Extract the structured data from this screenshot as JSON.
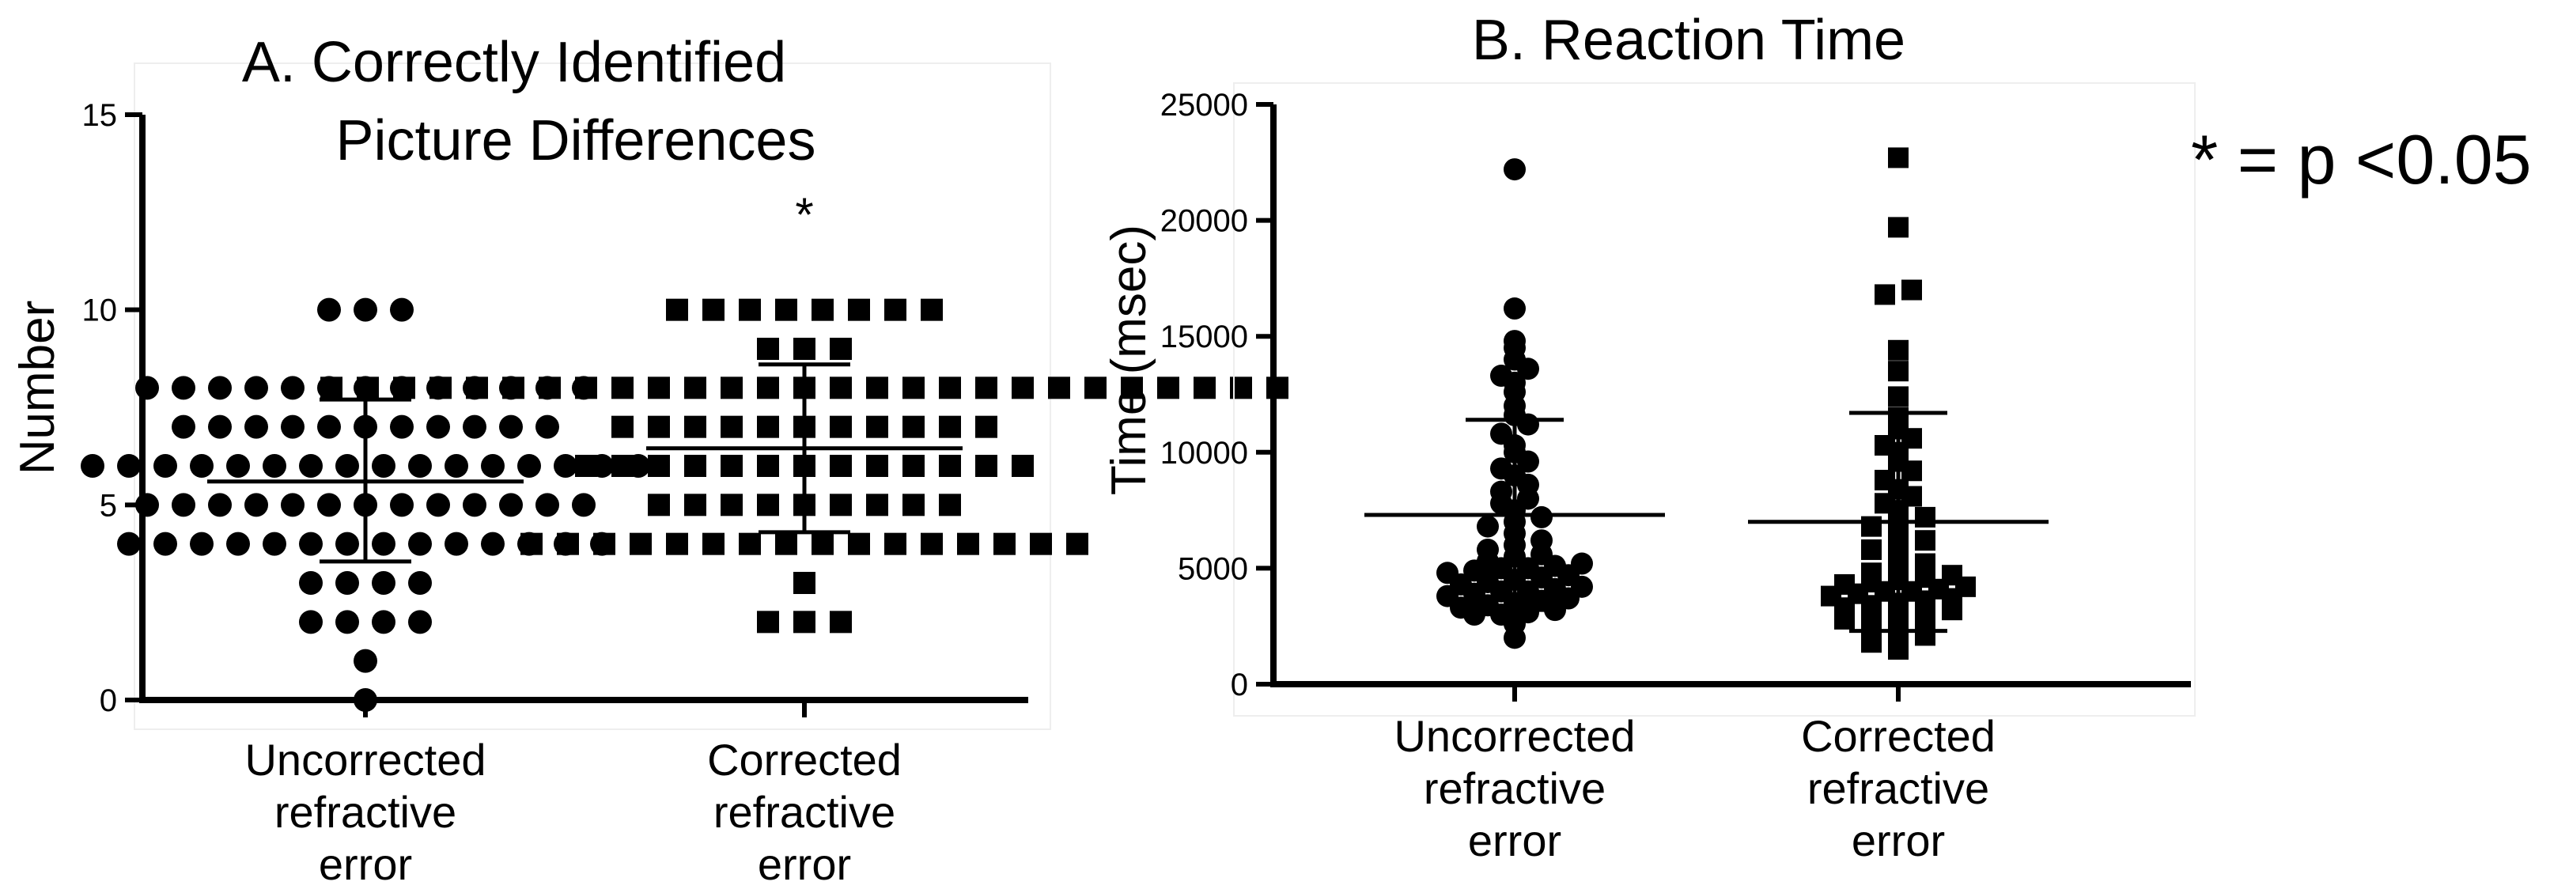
{
  "note": "* = p <0.05",
  "chart_data": [
    {
      "type": "scatter",
      "title_lines": [
        "A. Correctly Identified",
        "Picture Differences"
      ],
      "ylabel": "Number",
      "ylim": [
        0,
        15
      ],
      "yticks": [
        0,
        5,
        10,
        15
      ],
      "grid": false,
      "categories": [
        {
          "lines": [
            "Uncorrected",
            "refractive",
            "error"
          ]
        },
        {
          "lines": [
            "Corrected",
            "refractive",
            "error"
          ]
        }
      ],
      "series": [
        {
          "marker": "circle",
          "values": [
            0,
            1,
            2,
            2,
            2,
            2,
            3,
            3,
            3,
            3,
            4,
            4,
            4,
            4,
            4,
            4,
            4,
            4,
            4,
            4,
            4,
            4,
            4,
            4,
            5,
            5,
            5,
            5,
            5,
            5,
            5,
            5,
            5,
            5,
            5,
            5,
            5,
            6,
            6,
            6,
            6,
            6,
            6,
            6,
            6,
            6,
            6,
            6,
            6,
            6,
            6,
            6,
            6,
            7,
            7,
            7,
            7,
            7,
            7,
            7,
            7,
            7,
            7,
            7,
            8,
            8,
            8,
            8,
            8,
            8,
            8,
            8,
            8,
            8,
            8,
            8,
            8,
            10,
            10,
            10
          ],
          "mean": 5.6,
          "sd_low": 3.55,
          "sd_high": 7.7
        },
        {
          "marker": "square",
          "values": [
            2,
            2,
            2,
            3,
            4,
            4,
            4,
            4,
            4,
            4,
            4,
            4,
            4,
            4,
            4,
            4,
            4,
            4,
            4,
            4,
            5,
            5,
            5,
            5,
            5,
            5,
            5,
            5,
            5,
            6,
            6,
            6,
            6,
            6,
            6,
            6,
            6,
            6,
            6,
            6,
            6,
            6,
            7,
            7,
            7,
            7,
            7,
            7,
            7,
            7,
            7,
            7,
            7,
            8,
            8,
            8,
            8,
            8,
            8,
            8,
            8,
            8,
            8,
            8,
            8,
            8,
            8,
            8,
            8,
            8,
            8,
            8,
            8,
            8,
            8,
            8,
            8,
            8,
            8,
            8,
            9,
            9,
            9,
            10,
            10,
            10,
            10,
            10,
            10,
            10,
            10
          ],
          "mean": 6.45,
          "sd_low": 4.3,
          "sd_high": 8.6,
          "annotation": "*"
        }
      ]
    },
    {
      "type": "scatter",
      "title": "B. Reaction Time",
      "ylabel": "Time (msec)",
      "ylim": [
        0,
        25000
      ],
      "yticks": [
        0,
        5000,
        10000,
        15000,
        20000,
        25000
      ],
      "grid": false,
      "categories": [
        {
          "lines": [
            "Uncorrected",
            "refractive",
            "error"
          ]
        },
        {
          "lines": [
            "Corrected",
            "refractive",
            "error"
          ]
        }
      ],
      "series": [
        {
          "marker": "circle",
          "values": [
            2000,
            2600,
            3000,
            3000,
            3100,
            3200,
            3300,
            3400,
            3500,
            3600,
            3700,
            3800,
            3900,
            4000,
            4000,
            4100,
            4200,
            4300,
            4400,
            4500,
            4600,
            4700,
            4800,
            4900,
            5000,
            5000,
            5100,
            5200,
            5300,
            5500,
            5600,
            5800,
            6000,
            6200,
            6500,
            6800,
            7000,
            7200,
            7500,
            7800,
            8000,
            8300,
            8600,
            9000,
            9300,
            9600,
            10000,
            10300,
            10800,
            11200,
            11600,
            12000,
            12600,
            13000,
            13300,
            13600,
            14000,
            14500,
            14800,
            16200,
            22200
          ],
          "mean": 7300,
          "sd_low": 3200,
          "sd_high": 11400
        },
        {
          "marker": "square",
          "values": [
            1500,
            1800,
            2000,
            2100,
            2300,
            2500,
            2700,
            2800,
            3000,
            3000,
            3100,
            3200,
            3300,
            3400,
            3500,
            3600,
            3700,
            3800,
            3900,
            4000,
            4000,
            4100,
            4200,
            4300,
            4400,
            4500,
            4600,
            4700,
            4800,
            5000,
            5200,
            5500,
            5800,
            6000,
            6200,
            6500,
            6800,
            7000,
            7200,
            7500,
            7800,
            8100,
            8400,
            8800,
            9200,
            9600,
            10000,
            10300,
            10600,
            11000,
            11500,
            12400,
            13500,
            14400,
            16800,
            17000,
            19700,
            22700
          ],
          "mean": 7000,
          "sd_low": 2300,
          "sd_high": 11700
        }
      ]
    }
  ]
}
